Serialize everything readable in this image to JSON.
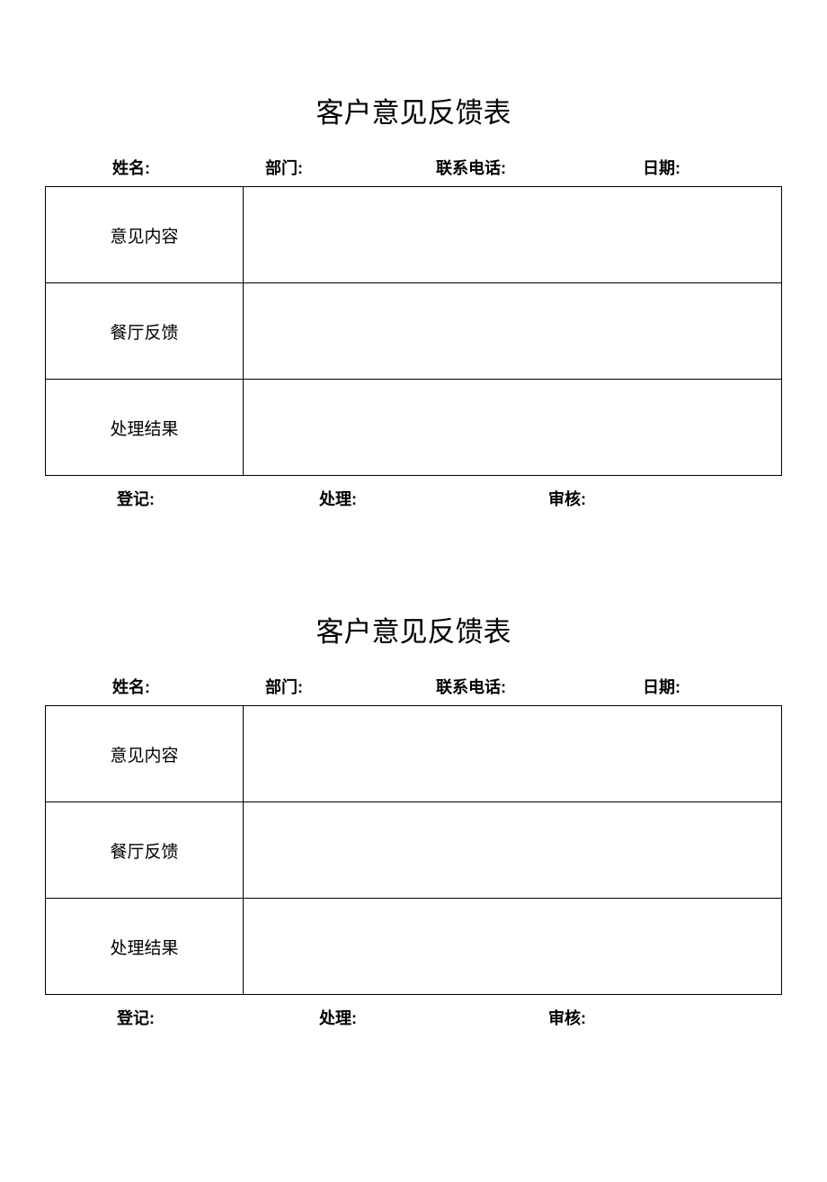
{
  "document": {
    "background_color": "#ffffff",
    "text_color": "#000000",
    "border_color": "#000000",
    "title_fontsize": 31,
    "label_fontsize": 19,
    "header_fontsize": 18,
    "forms": [
      {
        "title": "客户意见反馈表",
        "header": {
          "name": "姓名:",
          "department": "部门:",
          "phone": "联系电话:",
          "date": "日期:"
        },
        "rows": [
          {
            "label": "意见内容",
            "value": ""
          },
          {
            "label": "餐厅反馈",
            "value": ""
          },
          {
            "label": "处理结果",
            "value": ""
          }
        ],
        "footer": {
          "register": "登记:",
          "process": "处理:",
          "review": "审核:"
        }
      },
      {
        "title": "客户意见反馈表",
        "header": {
          "name": "姓名:",
          "department": "部门:",
          "phone": "联系电话:",
          "date": "日期:"
        },
        "rows": [
          {
            "label": "意见内容",
            "value": ""
          },
          {
            "label": "餐厅反馈",
            "value": ""
          },
          {
            "label": "处理结果",
            "value": ""
          }
        ],
        "footer": {
          "register": "登记:",
          "process": "处理:",
          "review": "审核:"
        }
      }
    ]
  }
}
